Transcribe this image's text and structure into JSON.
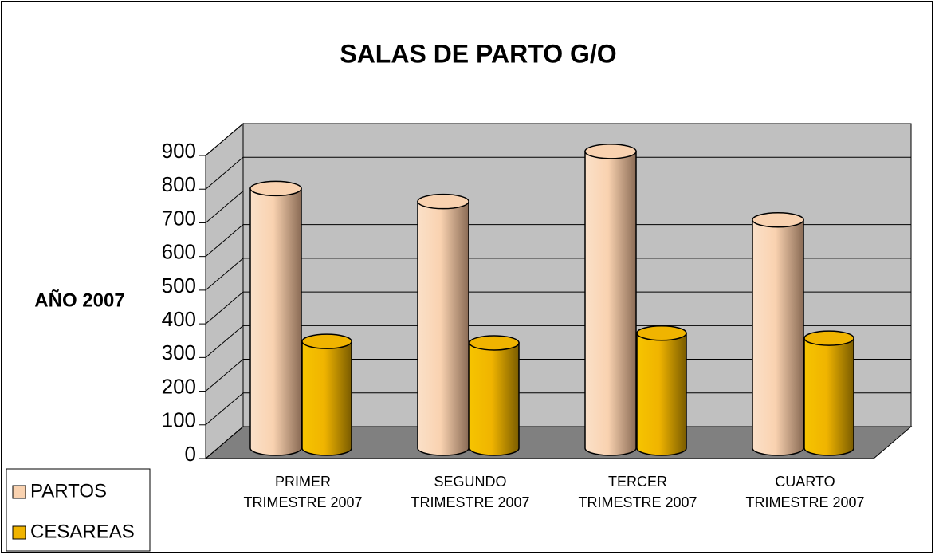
{
  "chart_data": {
    "type": "bar3d",
    "title": "SALAS DE PARTO G/O",
    "y_label": "AÑO  2007",
    "categories": [
      "PRIMER\nTRIMESTRE 2007",
      "SEGUNDO\nTRIMESTRE 2007",
      "TERCER\nTRIMESTRE 2007",
      "CUARTO\nTRIMESTRE 2007"
    ],
    "series": [
      {
        "name": "PARTOS",
        "color": "#f9d2b0",
        "values": [
          720,
          684,
          823,
          633
        ]
      },
      {
        "name": "CESAREAS",
        "color": "#f0b400",
        "values": [
          296,
          292,
          319,
          305
        ]
      }
    ],
    "ylim": [
      0,
      900
    ],
    "yticks": [
      0,
      100,
      200,
      300,
      400,
      500,
      600,
      700,
      800,
      900
    ],
    "grid": true,
    "legend": "bottom-left"
  }
}
